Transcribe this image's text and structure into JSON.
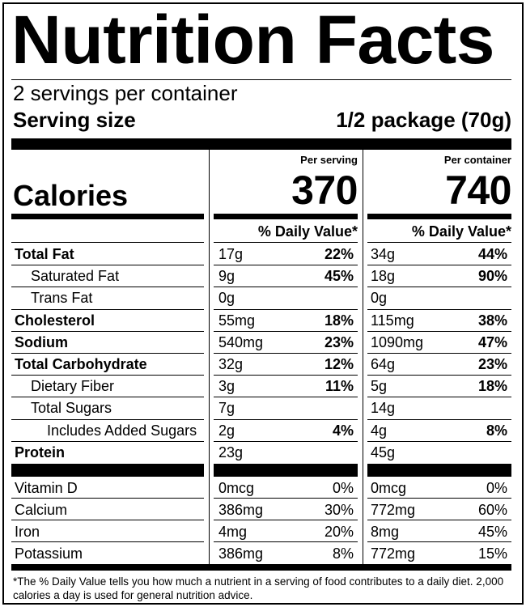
{
  "title": "Nutrition Facts",
  "servings_per_container": "2 servings per container",
  "serving_size": {
    "label": "Serving size",
    "value": "1/2 package (70g)"
  },
  "calories": {
    "label": "Calories",
    "per_serving_header": "Per serving",
    "per_container_header": "Per container",
    "per_serving": "370",
    "per_container": "740"
  },
  "daily_value_header": "% Daily Value*",
  "nutrients": [
    {
      "name": "Total Fat",
      "bold": true,
      "indent": 0,
      "serving_amount": "17g",
      "serving_dv": "22%",
      "container_amount": "34g",
      "container_dv": "44%"
    },
    {
      "name": "Saturated Fat",
      "bold": false,
      "indent": 1,
      "serving_amount": "9g",
      "serving_dv": "45%",
      "container_amount": "18g",
      "container_dv": "90%"
    },
    {
      "name": "Trans Fat",
      "bold": false,
      "indent": 1,
      "serving_amount": "0g",
      "serving_dv": "",
      "container_amount": "0g",
      "container_dv": ""
    },
    {
      "name": "Cholesterol",
      "bold": true,
      "indent": 0,
      "serving_amount": "55mg",
      "serving_dv": "18%",
      "container_amount": "115mg",
      "container_dv": "38%"
    },
    {
      "name": "Sodium",
      "bold": true,
      "indent": 0,
      "serving_amount": "540mg",
      "serving_dv": "23%",
      "container_amount": "1090mg",
      "container_dv": "47%"
    },
    {
      "name": "Total Carbohydrate",
      "bold": true,
      "indent": 0,
      "serving_amount": "32g",
      "serving_dv": "12%",
      "container_amount": "64g",
      "container_dv": "23%"
    },
    {
      "name": "Dietary Fiber",
      "bold": false,
      "indent": 1,
      "serving_amount": "3g",
      "serving_dv": "11%",
      "container_amount": "5g",
      "container_dv": "18%"
    },
    {
      "name": "Total Sugars",
      "bold": false,
      "indent": 1,
      "serving_amount": "7g",
      "serving_dv": "",
      "container_amount": "14g",
      "container_dv": ""
    },
    {
      "name": "Includes Added Sugars",
      "bold": false,
      "indent": 2,
      "serving_amount": "2g",
      "serving_dv": "4%",
      "container_amount": "4g",
      "container_dv": "8%"
    },
    {
      "name": "Protein",
      "bold": true,
      "indent": 0,
      "serving_amount": "23g",
      "serving_dv": "",
      "container_amount": "45g",
      "container_dv": ""
    }
  ],
  "vitamins": [
    {
      "name": "Vitamin D",
      "serving_amount": "0mcg",
      "serving_dv": "0%",
      "container_amount": "0mcg",
      "container_dv": "0%"
    },
    {
      "name": "Calcium",
      "serving_amount": "386mg",
      "serving_dv": "30%",
      "container_amount": "772mg",
      "container_dv": "60%"
    },
    {
      "name": "Iron",
      "serving_amount": "4mg",
      "serving_dv": "20%",
      "container_amount": "8mg",
      "container_dv": "45%"
    },
    {
      "name": "Potassium",
      "serving_amount": "386mg",
      "serving_dv": "8%",
      "container_amount": "772mg",
      "container_dv": "15%"
    }
  ],
  "footnote": "*The % Daily Value tells you how much a nutrient in a serving of food contributes to a daily diet. 2,000 calories a day is used for general nutrition advice."
}
